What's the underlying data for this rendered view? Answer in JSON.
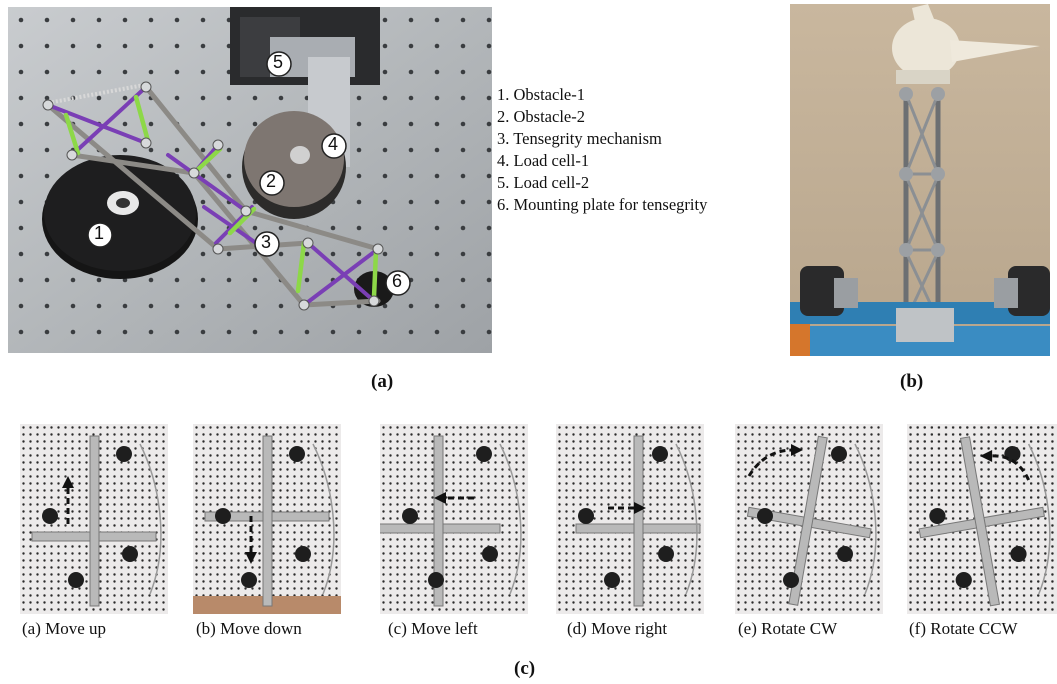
{
  "figure": {
    "panel_a": {
      "label": "(a)",
      "markers": [
        "1",
        "2",
        "3",
        "4",
        "5",
        "6"
      ],
      "legend": [
        "1. Obstacle-1",
        "2. Obstacle-2",
        "3. Tensegrity mechanism",
        "4. Load cell-1",
        "5. Load cell-2",
        "6. Mounting plate for tensegrity"
      ]
    },
    "panel_b": {
      "label": "(b)"
    },
    "panel_c": {
      "label": "(c)",
      "captions": [
        "(a) Move up",
        "(b) Move down",
        "(c) Move left",
        "(d) Move right",
        "(e) Rotate CW",
        "(f) Rotate CCW"
      ]
    }
  }
}
